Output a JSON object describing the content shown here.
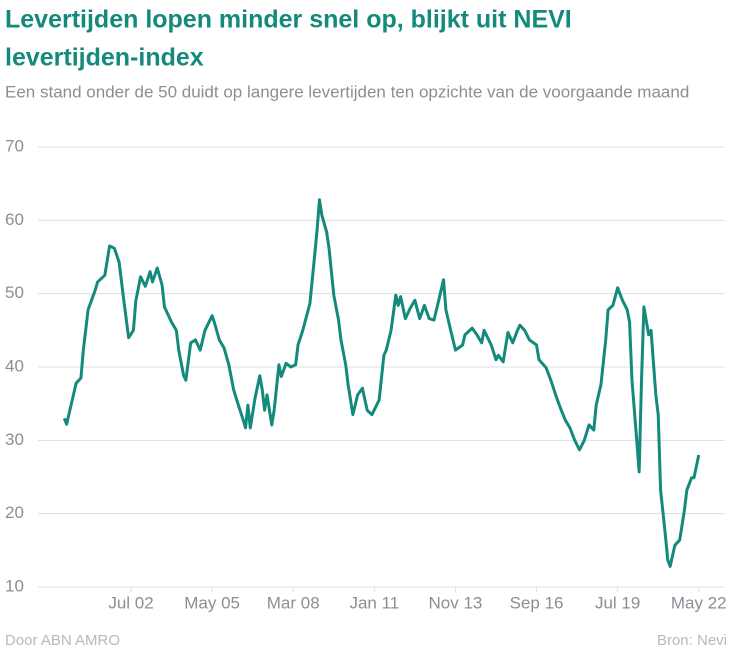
{
  "chart_data": {
    "type": "line",
    "title": "Levertijden lopen minder snel op, blijkt uit NEVI levertijden-index",
    "title_lines": [
      "Levertijden lopen minder snel op, blijkt uit NEVI",
      "levertijden-index"
    ],
    "subtitle": "Een stand onder de 50 duidt op langere levertijden ten opzichte van de voorgaande maand",
    "credit": "Door ABN AMRO",
    "source": "Bron: Nevi",
    "color": "#138a7c",
    "grid": true,
    "ylim": [
      10,
      70
    ],
    "yticks": [
      10,
      20,
      30,
      40,
      50,
      60,
      70
    ],
    "xlim": [
      "1999-04",
      "2023-04"
    ],
    "xticks": [
      {
        "value": "2002-07",
        "label": "Jul 02"
      },
      {
        "value": "2005-05",
        "label": "May 05"
      },
      {
        "value": "2008-03",
        "label": "Mar 08"
      },
      {
        "value": "2011-01",
        "label": "Jan 11"
      },
      {
        "value": "2013-11",
        "label": "Nov 13"
      },
      {
        "value": "2016-09",
        "label": "Sep 16"
      },
      {
        "value": "2019-07",
        "label": "Jul 19"
      },
      {
        "value": "2022-05",
        "label": "May 22"
      }
    ],
    "x": [
      "2000-03",
      "2000-04",
      "2000-06",
      "2000-08",
      "2000-10",
      "2000-11",
      "2001-01",
      "2001-04",
      "2001-05",
      "2001-08",
      "2001-10",
      "2001-12",
      "2002-02",
      "2002-04",
      "2002-06",
      "2002-08",
      "2002-09",
      "2002-11",
      "2003-01",
      "2003-03",
      "2003-04",
      "2003-06",
      "2003-08",
      "2003-09",
      "2003-12",
      "2004-02",
      "2004-03",
      "2004-05",
      "2004-06",
      "2004-08",
      "2004-10",
      "2004-12",
      "2005-02",
      "2005-05",
      "2005-06",
      "2005-08",
      "2005-10",
      "2005-12",
      "2006-02",
      "2006-04",
      "2006-06",
      "2006-07",
      "2006-08",
      "2006-09",
      "2006-11",
      "2007-01",
      "2007-02",
      "2007-03",
      "2007-04",
      "2007-06",
      "2007-07",
      "2007-09",
      "2007-10",
      "2007-12",
      "2008-02",
      "2008-04",
      "2008-05",
      "2008-07",
      "2008-10",
      "2008-12",
      "2009-01",
      "2009-02",
      "2009-03",
      "2009-05",
      "2009-06",
      "2009-08",
      "2009-10",
      "2009-11",
      "2010-01",
      "2010-02",
      "2010-04",
      "2010-06",
      "2010-08",
      "2010-10",
      "2010-12",
      "2011-03",
      "2011-05",
      "2011-06",
      "2011-08",
      "2011-10",
      "2011-11",
      "2011-12",
      "2012-02",
      "2012-04",
      "2012-06",
      "2012-08",
      "2012-10",
      "2012-12",
      "2013-02",
      "2013-04",
      "2013-06",
      "2013-07",
      "2013-09",
      "2013-11",
      "2014-02",
      "2014-03",
      "2014-06",
      "2014-08",
      "2014-10",
      "2014-11",
      "2015-02",
      "2015-04",
      "2015-05",
      "2015-07",
      "2015-09",
      "2015-11",
      "2016-01",
      "2016-02",
      "2016-04",
      "2016-06",
      "2016-09",
      "2016-10",
      "2017-01",
      "2017-03",
      "2017-05",
      "2017-07",
      "2017-09",
      "2017-11",
      "2018-01",
      "2018-03",
      "2018-05",
      "2018-07",
      "2018-09",
      "2018-10",
      "2018-12",
      "2019-02",
      "2019-03",
      "2019-05",
      "2019-07",
      "2019-09",
      "2019-11",
      "2019-12",
      "2020-01",
      "2020-03",
      "2020-04",
      "2020-05",
      "2020-06",
      "2020-08",
      "2020-09",
      "2020-11",
      "2020-12",
      "2021-01",
      "2021-03",
      "2021-04",
      "2021-05",
      "2021-07",
      "2021-09",
      "2021-11",
      "2021-12",
      "2022-02",
      "2022-03",
      "2022-05"
    ],
    "values": [
      33,
      32.2,
      35,
      37.8,
      38.5,
      42.3,
      47.8,
      50.5,
      51.6,
      52.5,
      56.5,
      56.2,
      54.3,
      49,
      44,
      45,
      49,
      52.3,
      51,
      53,
      51.6,
      53.5,
      51.2,
      48.2,
      46.1,
      45,
      42.3,
      38.9,
      38.2,
      43.3,
      43.7,
      42.3,
      45,
      47,
      46,
      43.7,
      42.6,
      40.3,
      36.9,
      34.8,
      32.8,
      31.7,
      34.8,
      31.7,
      35.8,
      38.8,
      36.9,
      34.1,
      36.2,
      32.1,
      34.1,
      40.3,
      38.7,
      40.5,
      40,
      40.3,
      43,
      45,
      48.7,
      55.3,
      58.7,
      62.8,
      60.7,
      58.4,
      56.2,
      49.8,
      46.4,
      43.7,
      40.3,
      37.6,
      33.5,
      36.2,
      37.1,
      34.1,
      33.5,
      35.5,
      41.6,
      42.3,
      45,
      49.8,
      48.4,
      49.6,
      46.6,
      48,
      49.1,
      46.6,
      48.4,
      46.6,
      46.4,
      49.1,
      51.9,
      47.8,
      45,
      42.3,
      43,
      44.4,
      45.3,
      44.4,
      43.3,
      45,
      43,
      41,
      41.6,
      40.7,
      44.7,
      43.3,
      45,
      45.7,
      45,
      43.7,
      43,
      41,
      39.9,
      38.2,
      36.2,
      34.4,
      32.8,
      31.7,
      30,
      28.7,
      30,
      32.1,
      31.4,
      34.8,
      37.6,
      43.7,
      47.8,
      48.4,
      50.8,
      49.1,
      47.8,
      46.1,
      38.2,
      30,
      25.7,
      38.2,
      48.2,
      44.4,
      45,
      36.2,
      33.5,
      23.2,
      17.1,
      13.7,
      12.8,
      15.7,
      16.4,
      20.5,
      23.2,
      24.9,
      24.9,
      28
    ]
  }
}
